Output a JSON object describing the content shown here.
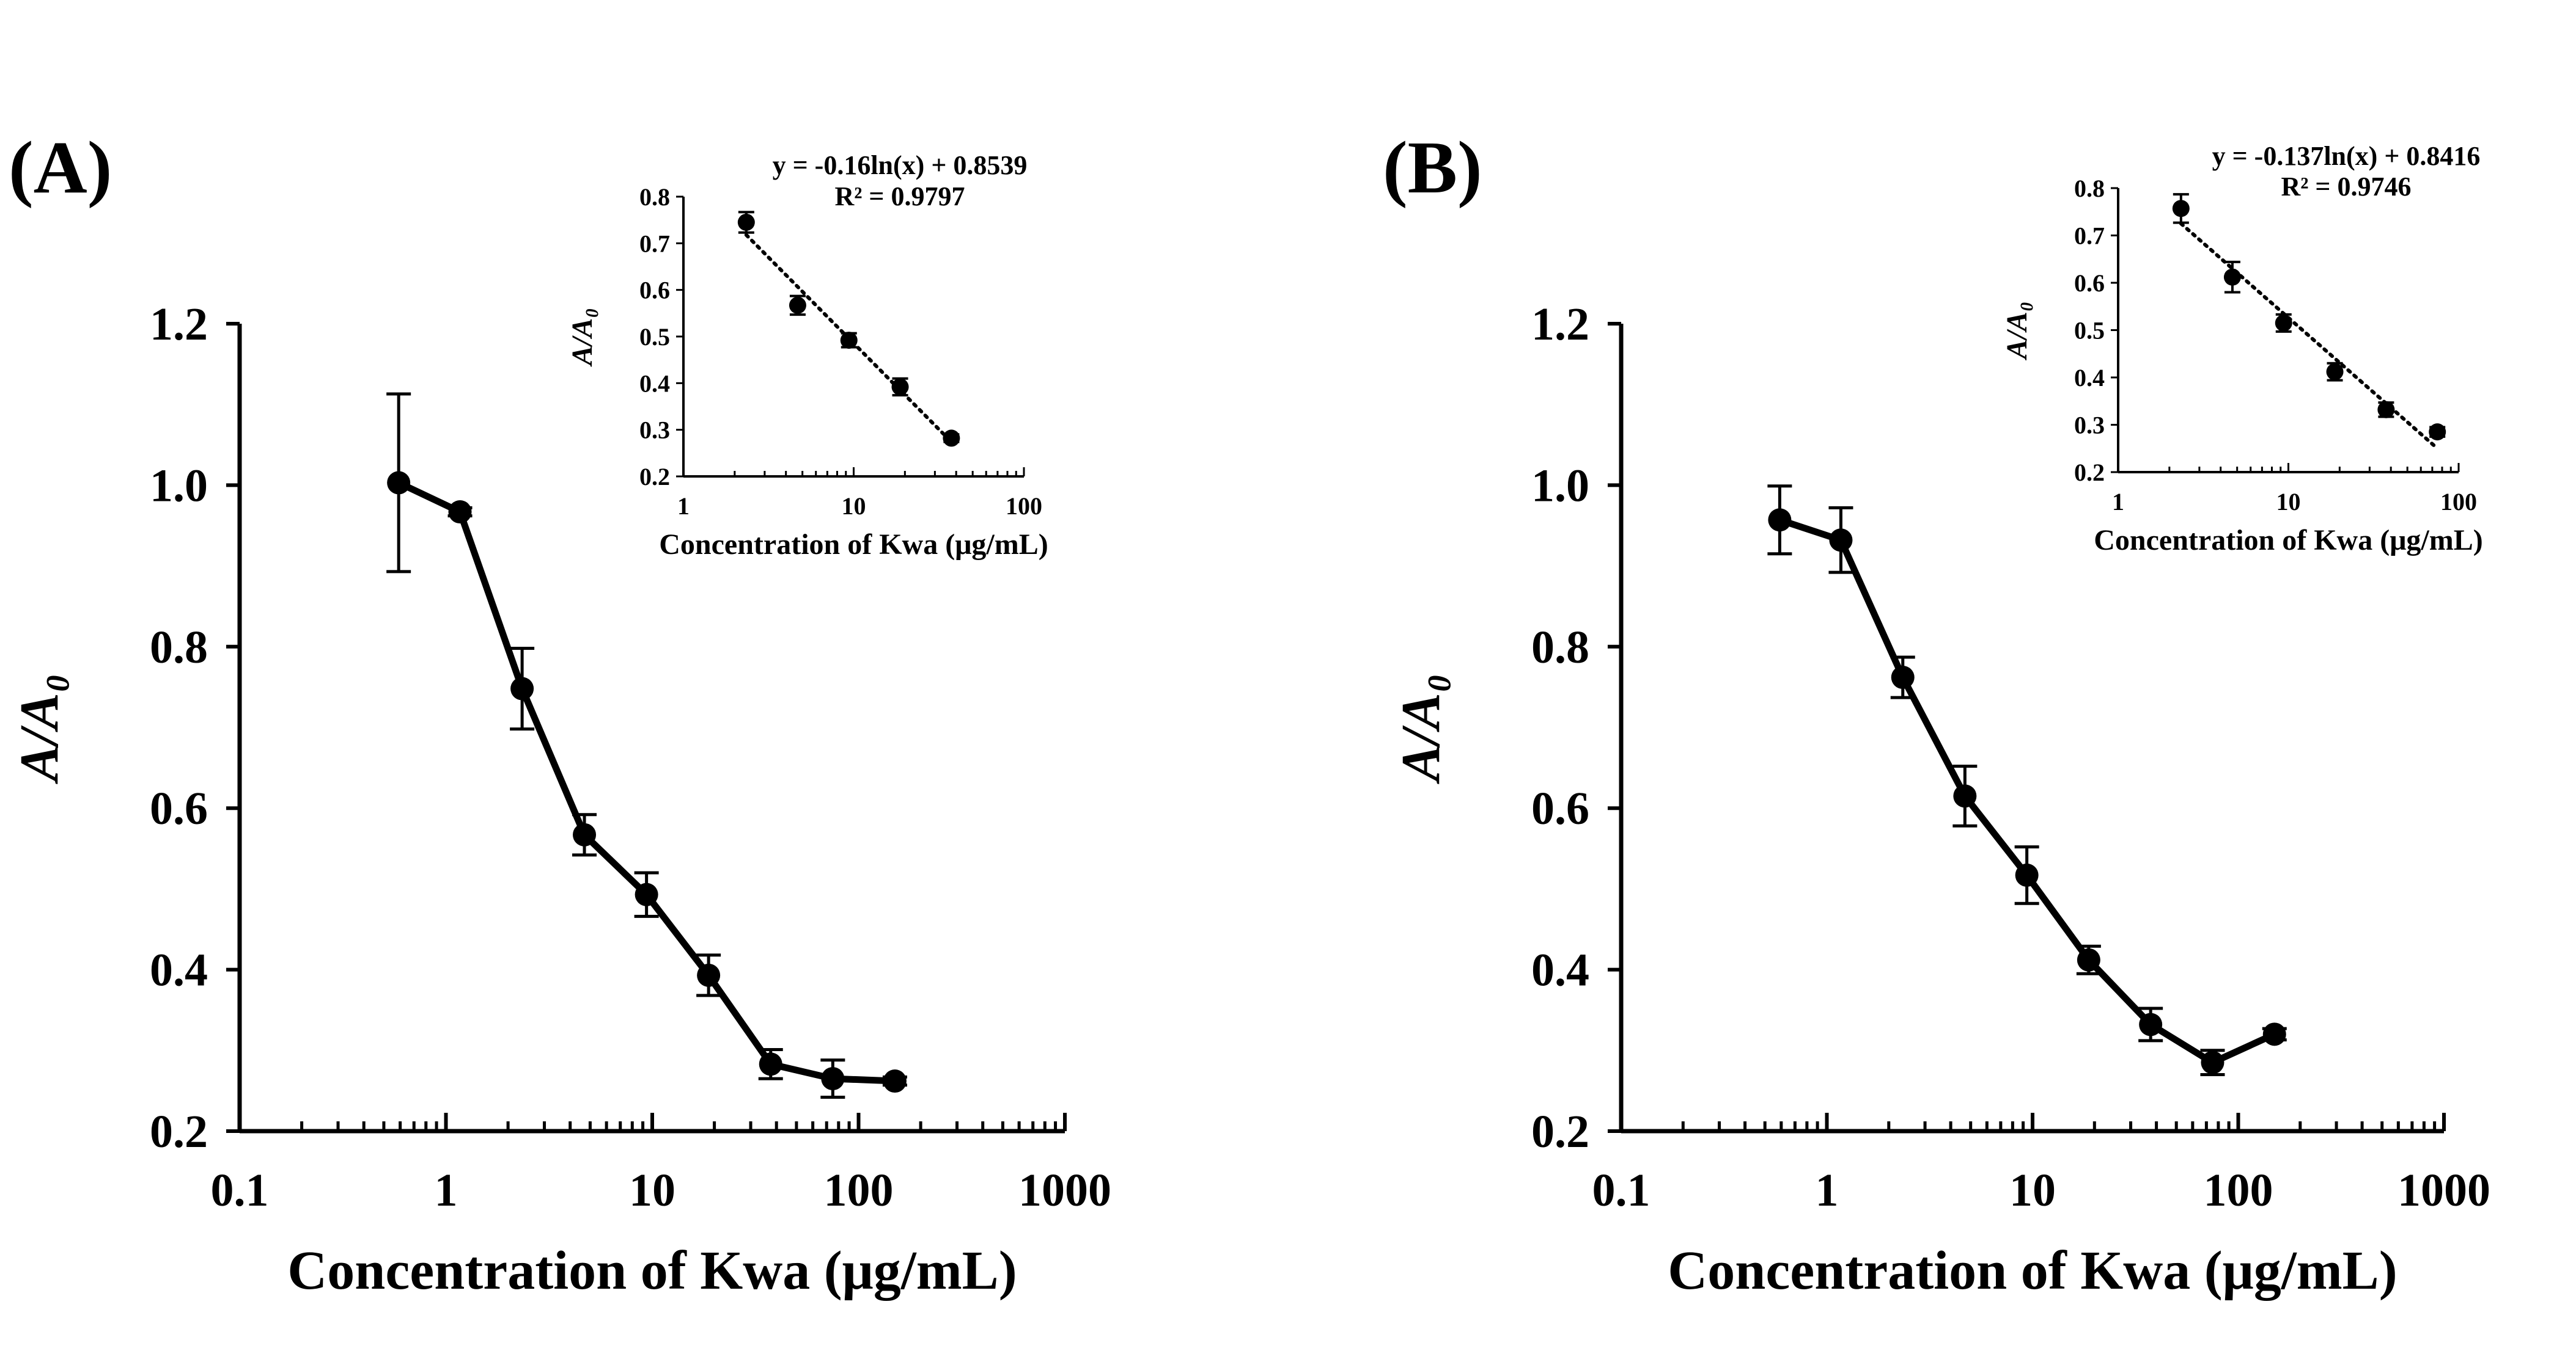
{
  "figure": {
    "panels": [
      {
        "label": "(A)",
        "main": {
          "type": "line",
          "xscale": "log",
          "xlim": [
            0.1,
            1000
          ],
          "ylim": [
            0.2,
            1.2
          ],
          "xticks": [
            0.1,
            1,
            10,
            100,
            1000
          ],
          "xtick_labels": [
            "0.1",
            "1",
            "10",
            "100",
            "1000"
          ],
          "yticks": [
            0.2,
            0.4,
            0.6,
            0.8,
            1.0,
            1.2
          ],
          "ytick_labels": [
            "0.2",
            "0.4",
            "0.6",
            "0.8",
            "1.0",
            "1.2"
          ],
          "xlabel": "Concentration  of Kwa (μg/mL)",
          "ylabel": "A/A₀",
          "series": [
            {
              "name": "A/A0",
              "x": [
                0.59,
                1.17,
                2.34,
                4.69,
                9.38,
                18.75,
                37.5,
                75,
                150
              ],
              "y": [
                1.003,
                0.967,
                0.748,
                0.567,
                0.493,
                0.393,
                0.283,
                0.265,
                0.262
              ],
              "err": [
                0.11,
                0.005,
                0.05,
                0.025,
                0.027,
                0.025,
                0.018,
                0.023,
                0.005
              ]
            }
          ]
        },
        "inset": {
          "type": "scatter",
          "xscale": "log",
          "xlim": [
            1,
            100
          ],
          "ylim": [
            0.2,
            0.8
          ],
          "xticks": [
            1,
            10,
            100
          ],
          "xtick_labels": [
            "1",
            "10",
            "100"
          ],
          "yticks": [
            0.2,
            0.3,
            0.4,
            0.5,
            0.6,
            0.7,
            0.8
          ],
          "ytick_labels": [
            "0.2",
            "0.3",
            "0.4",
            "0.5",
            "0.6",
            "0.7",
            "0.8"
          ],
          "xlabel": "Concentration of Kwa (μg/mL)",
          "ylabel": "A/A₀",
          "equation": "y = -0.16ln(x) + 0.8539",
          "r2": "R² = 0.9797",
          "fit": {
            "slope": -0.16,
            "intercept": 0.8539
          },
          "series": [
            {
              "name": "A/A0",
              "x": [
                2.34,
                4.69,
                9.38,
                18.75,
                37.5
              ],
              "y": [
                0.745,
                0.567,
                0.492,
                0.392,
                0.282
              ],
              "err": [
                0.022,
                0.02,
                0.015,
                0.018,
                0.008
              ]
            }
          ]
        }
      },
      {
        "label": "(B)",
        "main": {
          "type": "line",
          "xscale": "log",
          "xlim": [
            0.1,
            1000
          ],
          "ylim": [
            0.2,
            1.2
          ],
          "xticks": [
            0.1,
            1,
            10,
            100,
            1000
          ],
          "xtick_labels": [
            "0.1",
            "1",
            "10",
            "100",
            "1000"
          ],
          "yticks": [
            0.2,
            0.4,
            0.6,
            0.8,
            1.0,
            1.2
          ],
          "ytick_labels": [
            "0.2",
            "0.4",
            "0.6",
            "0.8",
            "1.0",
            "1.2"
          ],
          "xlabel": "Concentration  of Kwa (μg/mL)",
          "ylabel": "A/A₀",
          "series": [
            {
              "name": "A/A0",
              "x": [
                0.59,
                1.17,
                2.34,
                4.69,
                9.38,
                18.75,
                37.5,
                75,
                150
              ],
              "y": [
                0.957,
                0.932,
                0.762,
                0.615,
                0.517,
                0.412,
                0.332,
                0.285,
                0.32
              ],
              "err": [
                0.042,
                0.04,
                0.025,
                0.037,
                0.035,
                0.017,
                0.02,
                0.015,
                0.007
              ]
            }
          ]
        },
        "inset": {
          "type": "scatter",
          "xscale": "log",
          "xlim": [
            1,
            100
          ],
          "ylim": [
            0.2,
            0.8
          ],
          "xticks": [
            1,
            10,
            100
          ],
          "xtick_labels": [
            "1",
            "10",
            "100"
          ],
          "yticks": [
            0.2,
            0.3,
            0.4,
            0.5,
            0.6,
            0.7,
            0.8
          ],
          "ytick_labels": [
            "0.2",
            "0.3",
            "0.4",
            "0.5",
            "0.6",
            "0.7",
            "0.8"
          ],
          "xlabel": "Concentration of Kwa (μg/mL)",
          "ylabel": "A/A₀",
          "equation": "y = -0.137ln(x) + 0.8416",
          "r2": "R² = 0.9746",
          "fit": {
            "slope": -0.137,
            "intercept": 0.8416
          },
          "series": [
            {
              "name": "A/A0",
              "x": [
                2.34,
                4.69,
                9.38,
                18.75,
                37.5,
                75
              ],
              "y": [
                0.757,
                0.612,
                0.515,
                0.412,
                0.332,
                0.285
              ],
              "err": [
                0.03,
                0.032,
                0.018,
                0.018,
                0.015,
                0.01
              ]
            }
          ]
        }
      }
    ]
  }
}
